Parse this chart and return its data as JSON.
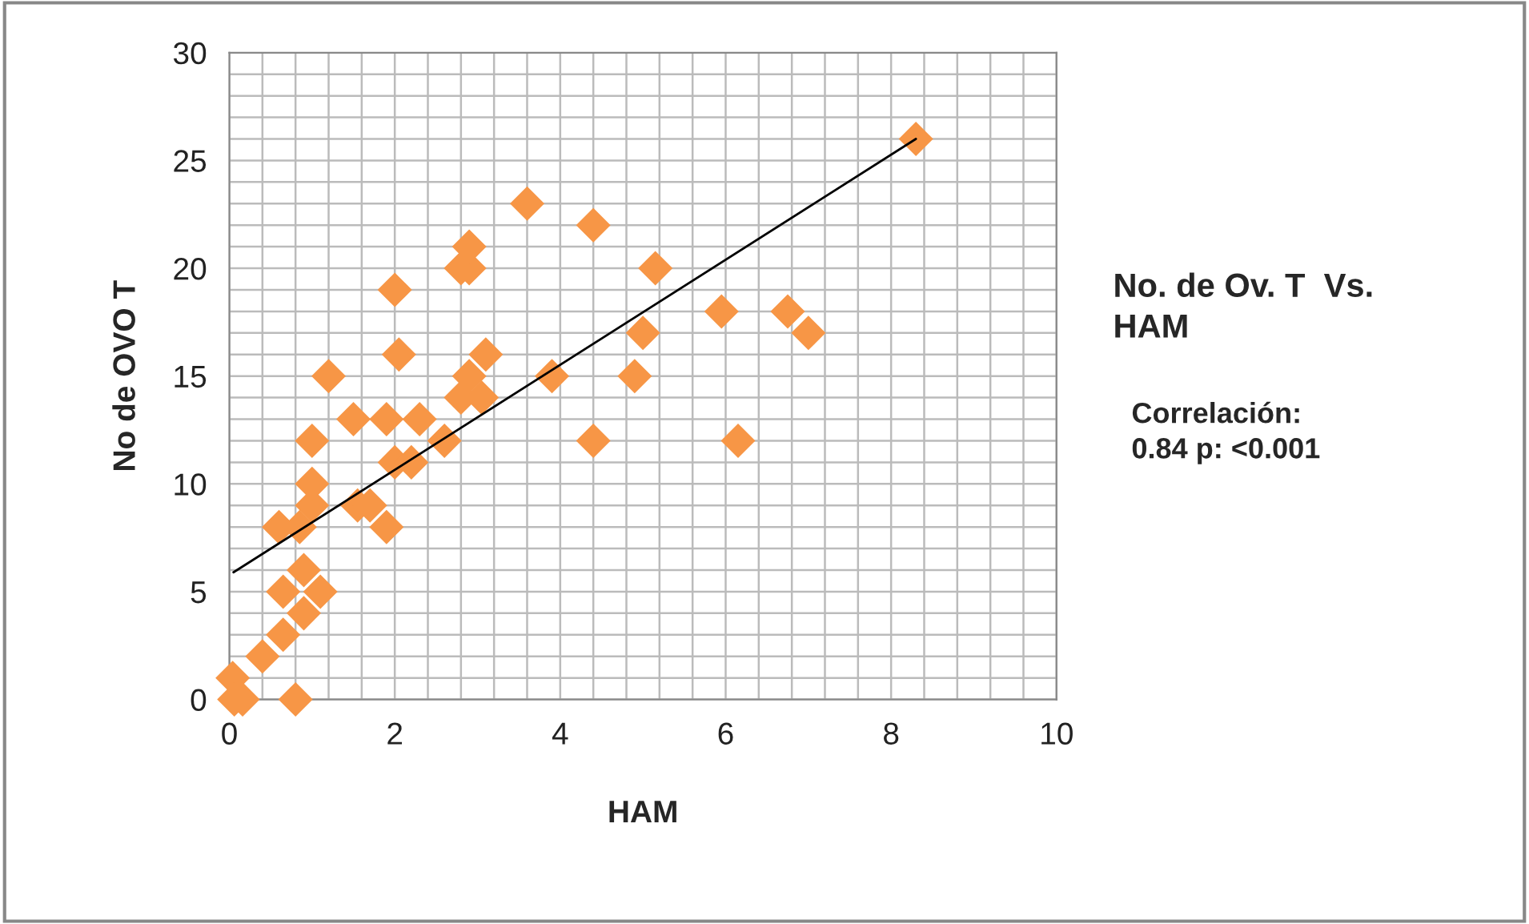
{
  "chart_data": {
    "type": "scatter",
    "title": "No. de Ov. T  Vs.\nHAM",
    "xlabel": "HAM",
    "ylabel": "No de OVO T",
    "annotations": [
      "Correlación:\n0.84 p: <0.001"
    ],
    "xlim": [
      0,
      10
    ],
    "ylim": [
      0,
      30
    ],
    "xticks": [
      0,
      {
        "value": 0.4,
        "label": null
      },
      {
        "value": 0.8,
        "label": null
      },
      {
        "value": 1.2,
        "label": null
      },
      {
        "value": 1.6,
        "label": null
      },
      2,
      {
        "value": 2.4,
        "label": null
      },
      {
        "value": 2.8,
        "label": null
      },
      {
        "value": 3.2,
        "label": null
      },
      {
        "value": 3.6,
        "label": null
      },
      4,
      {
        "value": 4.4,
        "label": null
      },
      {
        "value": 4.8,
        "label": null
      },
      {
        "value": 5.2,
        "label": null
      },
      {
        "value": 5.6,
        "label": null
      },
      6,
      {
        "value": 6.4,
        "label": null
      },
      {
        "value": 6.8,
        "label": null
      },
      {
        "value": 7.2,
        "label": null
      },
      {
        "value": 7.6,
        "label": null
      },
      8,
      {
        "value": 8.4,
        "label": null
      },
      {
        "value": 8.8,
        "label": null
      },
      {
        "value": 9.2,
        "label": null
      },
      {
        "value": 9.6,
        "label": null
      },
      10
    ],
    "yticks": [
      0,
      {
        "value": 1,
        "label": null
      },
      {
        "value": 2,
        "label": null
      },
      {
        "value": 3,
        "label": null
      },
      {
        "value": 4,
        "label": null
      },
      5,
      {
        "value": 6,
        "label": null
      },
      {
        "value": 7,
        "label": null
      },
      {
        "value": 8,
        "label": null
      },
      {
        "value": 9,
        "label": null
      },
      10,
      {
        "value": 11,
        "label": null
      },
      {
        "value": 12,
        "label": null
      },
      {
        "value": 13,
        "label": null
      },
      {
        "value": 14,
        "label": null
      },
      15,
      {
        "value": 16,
        "label": null
      },
      {
        "value": 17,
        "label": null
      },
      {
        "value": 18,
        "label": null
      },
      {
        "value": 19,
        "label": null
      },
      20,
      {
        "value": 21,
        "label": null
      },
      {
        "value": 22,
        "label": null
      },
      {
        "value": 23,
        "label": null
      },
      {
        "value": 24,
        "label": null
      },
      25,
      {
        "value": 26,
        "label": null
      },
      {
        "value": 27,
        "label": null
      },
      {
        "value": 28,
        "label": null
      },
      {
        "value": 29,
        "label": null
      },
      30
    ],
    "grid": true,
    "marker": "diamond",
    "series": [
      {
        "color": "#f79646",
        "x": [
          0.04,
          0.06,
          0.16,
          0.8,
          0.4,
          0.65,
          0.65,
          0.9,
          0.9,
          1.1,
          0.6,
          0.85,
          1.0,
          1.0,
          1.0,
          1.2,
          1.5,
          1.55,
          1.7,
          1.9,
          1.9,
          2.0,
          2.05,
          2.0,
          2.2,
          2.3,
          2.6,
          2.8,
          3.05,
          2.8,
          2.9,
          2.9,
          2.9,
          3.1,
          3.6,
          3.9,
          4.4,
          4.4,
          4.9,
          5.0,
          5.15,
          5.95,
          6.15,
          6.75,
          7.0,
          8.3
        ],
        "values": [
          1,
          0,
          0,
          0,
          2,
          3,
          5,
          4,
          6,
          5,
          8,
          8,
          9,
          10,
          12,
          15,
          13,
          9,
          9,
          8,
          13,
          11,
          16,
          19,
          11,
          13,
          12,
          14,
          14,
          20,
          20,
          21,
          15,
          16,
          23,
          15,
          12,
          22,
          15,
          17,
          20,
          18,
          12,
          18,
          17,
          26
        ]
      },
      {
        "type": "line",
        "color": "#000000",
        "marker": "none",
        "x": [
          0.05,
          8.3
        ],
        "values": [
          5.9,
          26
        ]
      }
    ]
  }
}
